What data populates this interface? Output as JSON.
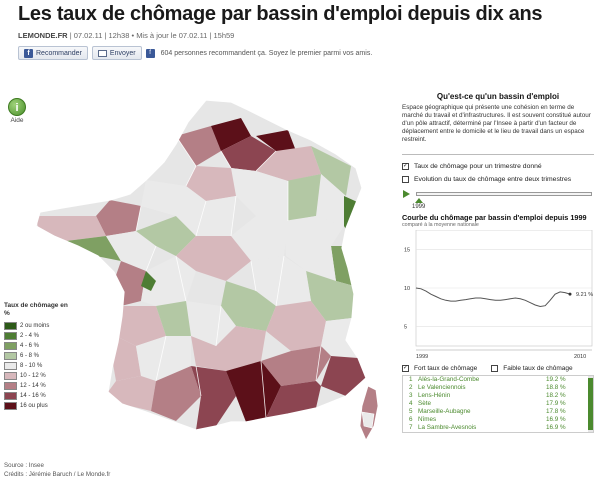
{
  "header": {
    "title": "Les taux de chômage par bassin d'emploi depuis dix ans",
    "source_site": "LEMONDE.FR",
    "date": "07.02.11",
    "time": "12h38",
    "updated_prefix": "Mis à jour le",
    "updated": "07.02.11 | 15h59"
  },
  "share": {
    "recommend_label": "Recommander",
    "email_label": "Envoyer",
    "recommend_text": "604 personnes recommandent ça. Soyez le premier parmi vos amis."
  },
  "help": {
    "symbol": "i",
    "label": "Aide"
  },
  "legend": {
    "title": "Taux de chômage en %",
    "items": [
      {
        "label": "2 ou moins",
        "color": "#2d5a18"
      },
      {
        "label": "2 - 4 %",
        "color": "#4e7d34"
      },
      {
        "label": "4 - 6 %",
        "color": "#7fa063"
      },
      {
        "label": "6 - 8 %",
        "color": "#b3c8a4"
      },
      {
        "label": "8 - 10 %",
        "color": "#eaeaea"
      },
      {
        "label": "10 - 12 %",
        "color": "#d7b8bc"
      },
      {
        "label": "12 - 14 %",
        "color": "#b47f86"
      },
      {
        "label": "14 - 16 %",
        "color": "#8c4551"
      },
      {
        "label": "16 ou plus",
        "color": "#5c1019"
      }
    ]
  },
  "source": {
    "line1": "Source : Insee",
    "line2": "Crédits : Jérémie Baruch / Le Monde.fr"
  },
  "panel": {
    "title": "Qu'est-ce qu'un bassin d'emploi",
    "description": "Espace géographique qui présente une cohésion en terme de marché du travail et d'infrastructures. Il est souvent constitué autour d'un pôle attractif, déterminé par l'Insee à partir d'un facteur de déplacement entre le domicile et le lieu de travail dans un espace restreint.",
    "option1": "Taux de chômage pour un trimestre donné",
    "option2": "Evolution du taux de chômage entre deux trimestres",
    "slider_year": "1999"
  },
  "curve": {
    "title": "Courbe du chômage par bassin d'emploi depuis 1999",
    "subtitle": "comparé à la moyenne nationale",
    "final_label": "9.21 %",
    "legend_fort": "Fort taux de chômage",
    "legend_faible": "Faible taux de chômage"
  },
  "chart_data": {
    "type": "line",
    "x_start_label": "1999",
    "x_end_label": "2010",
    "yticks": [
      5,
      10,
      15
    ],
    "ylim": [
      3,
      17
    ],
    "series": [
      {
        "values": [
          10.0,
          9.9,
          9.6,
          9.2,
          8.9,
          8.6,
          8.4,
          8.3,
          8.3,
          8.4,
          8.5,
          8.6,
          8.7,
          8.7,
          8.6,
          8.5,
          8.4,
          8.4,
          8.5,
          8.6,
          8.7,
          8.6,
          8.4,
          8.1,
          7.8,
          7.6,
          7.7,
          8.4,
          9.2,
          9.5,
          9.4,
          9.21
        ]
      }
    ]
  },
  "ranking": [
    {
      "rank": "1",
      "name": "Alès-la-Grand-Combe",
      "value": "19.2 %"
    },
    {
      "rank": "2",
      "name": "Le Valenciennois",
      "value": "18.8 %"
    },
    {
      "rank": "3",
      "name": "Lens-Hénin",
      "value": "18.2 %"
    },
    {
      "rank": "4",
      "name": "Sète",
      "value": "17.9 %"
    },
    {
      "rank": "5",
      "name": "Marseille-Aubagne",
      "value": "17.8 %"
    },
    {
      "rank": "6",
      "name": "Nîmes",
      "value": "16.9 %"
    },
    {
      "rank": "7",
      "name": "La Sambre-Avesnois",
      "value": "16.9 %"
    }
  ]
}
